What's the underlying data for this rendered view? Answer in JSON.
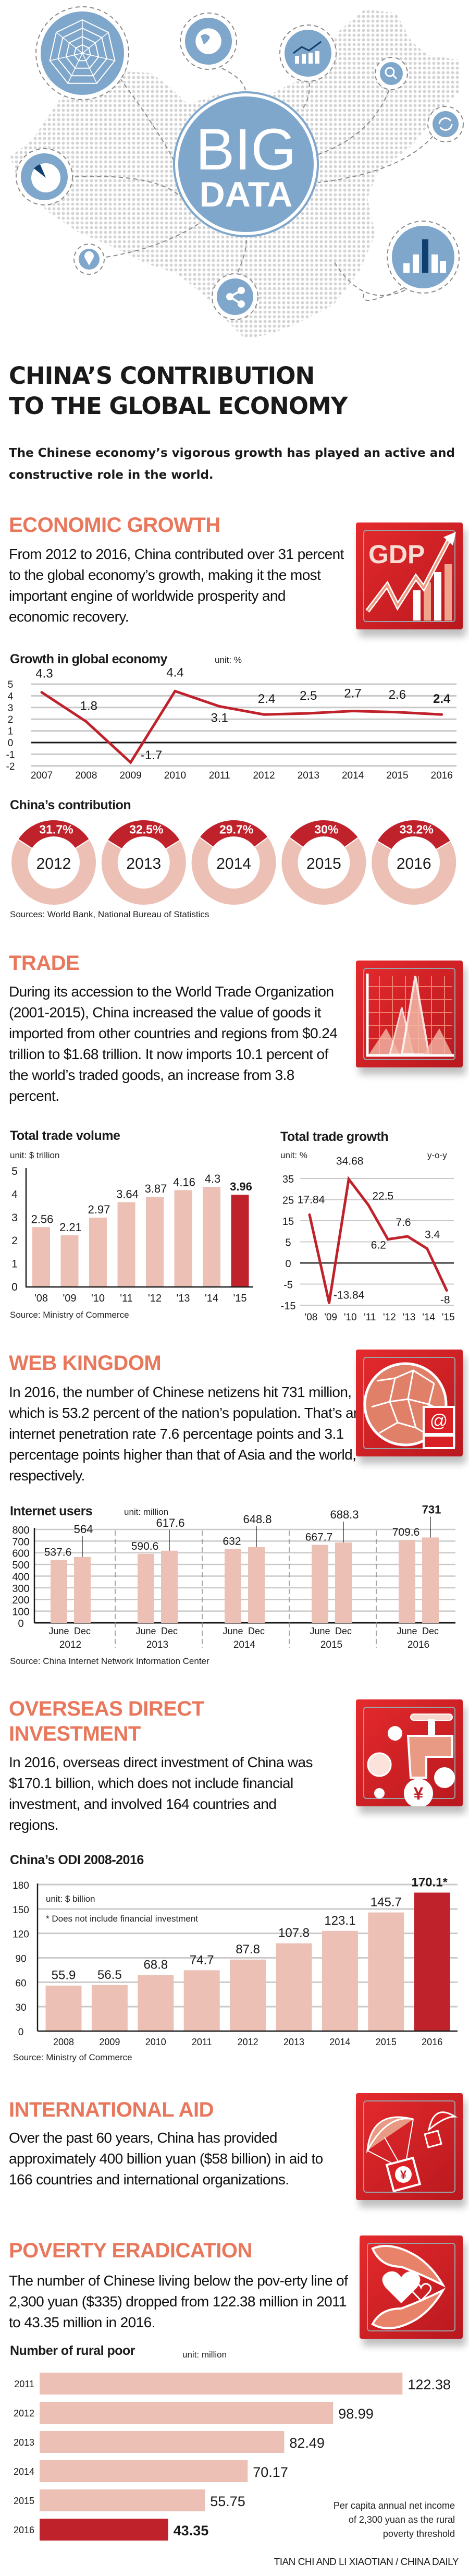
{
  "header": {
    "big": "BIG",
    "data": "DATA",
    "title_line1": "CHINA’S CONTRIBUTION",
    "title_line2": "TO THE GLOBAL ECONOMY",
    "subtitle": "The Chinese economy’s vigorous growth has played an active and constructive role in the world."
  },
  "sections": {
    "economic": {
      "heading": "ECONOMIC GROWTH",
      "body": "From 2012 to 2016, China contributed over 31 percent to the global economy’s growth, making it the most important engine of worldwide prosperity and economic recovery.",
      "icon_text": "GDP",
      "source": "Sources: World Bank, National Bureau of Statistics"
    },
    "trade": {
      "heading": "TRADE",
      "body": "During its accession to the World Trade Organization (2001-2015), China increased the value of goods it imported from other countries and regions from $0.24 trillion to $1.68 trillion. It now imports 10.1 percent of the world’s traded goods, an increase from 3.8 percent.",
      "source": "Source: Ministry of Commerce"
    },
    "web": {
      "heading": "WEB KINGDOM",
      "body": "In 2016, the number of Chinese netizens hit 731 million, which is 53.2 percent of the nation’s population. That’s an internet penetration rate 7.6 percentage points and 3.1 percentage points higher than that of Asia and the world, respectively.",
      "icon_text": "@",
      "source": "Source: China Internet Network Information Center"
    },
    "odi": {
      "heading_line1": "OVERSEAS DIRECT",
      "heading_line2": "INVESTMENT",
      "body": "In 2016, overseas direct investment of China was $170.1 billion, which does not include financial investment, and involved 164 countries and regions.",
      "icon_text": "¥",
      "source": "Source: Ministry of Commerce"
    },
    "aid": {
      "heading": "INTERNATIONAL AID",
      "body": "Over the past 60 years, China has provided approximately 400 billion yuan ($58 billion) in aid to 166 countries and international organizations.",
      "icon_text": "¥"
    },
    "poverty": {
      "heading": "POVERTY ERADICATION",
      "body": "The number of Chinese living below the pov-erty line of 2,300 yuan ($335) dropped from 122.38 million in 2011 to 43.35 million in 2016."
    }
  },
  "icons": {
    "illustration": [
      "radar-chart-icon",
      "globe-icon",
      "trend-chart-icon",
      "search-icon",
      "refresh-icon",
      "pie-chart-icon",
      "location-pin-icon",
      "share-icon",
      "bar-chart-icon"
    ],
    "boxes": [
      "gdp-arrow-icon",
      "trade-peaks-icon",
      "globe-at-icon",
      "faucet-yuan-icon",
      "parachute-yuan-icon",
      "hands-heart-icon"
    ]
  },
  "colors": {
    "accent": "#e8775c",
    "red": "#c0222c",
    "pink": "#ecc0b4",
    "blue": "#7fa6cb",
    "navy": "#0f3f6e"
  },
  "footer": "TIAN CHI AND LI XIAOTIAN / CHINA DAILY",
  "chart_data": [
    {
      "type": "line",
      "title": "Growth in global economy",
      "unit": "unit: %",
      "x": [
        "2007",
        "2008",
        "2009",
        "2010",
        "2011",
        "2012",
        "2013",
        "2014",
        "2015",
        "2016"
      ],
      "values": [
        4.3,
        1.8,
        -1.7,
        4.4,
        3.1,
        2.4,
        2.5,
        2.7,
        2.6,
        2.4
      ],
      "labels": [
        "4.3",
        "1.8",
        "-1.7",
        "4.4",
        "3.1",
        "2.4",
        "2.5",
        "2.7",
        "2.6",
        "2.4"
      ],
      "yticks": [
        "5",
        "4",
        "3",
        "2",
        "1",
        "0",
        "-1",
        "-2"
      ],
      "ylim": [
        -2,
        5
      ],
      "grid": true
    },
    {
      "type": "pie",
      "title": "China’s contribution",
      "categories": [
        "2012",
        "2013",
        "2014",
        "2015",
        "2016"
      ],
      "values": [
        31.7,
        32.5,
        29.7,
        30,
        33.2
      ],
      "labels": [
        "31.7%",
        "32.5%",
        "29.7%",
        "30%",
        "33.2%"
      ]
    },
    {
      "type": "bar",
      "title": "Total trade volume",
      "unit": "unit: $ trillion",
      "categories": [
        "'08",
        "'09",
        "'10",
        "'11",
        "'12",
        "'13",
        "'14",
        "'15"
      ],
      "values": [
        2.56,
        2.21,
        2.97,
        3.64,
        3.87,
        4.16,
        4.3,
        3.96
      ],
      "labels": [
        "2.56",
        "2.21",
        "2.97",
        "3.64",
        "3.87",
        "4.16",
        "4.3",
        "3.96"
      ],
      "yticks": [
        "5",
        "4",
        "3",
        "2",
        "1",
        "0"
      ],
      "ylim": [
        0,
        5
      ]
    },
    {
      "type": "line",
      "title": "Total trade growth",
      "unit": "unit: %",
      "note": "y-o-y",
      "categories": [
        "'08",
        "'09",
        "'10",
        "'11",
        "'12",
        "'13",
        "'14",
        "'15"
      ],
      "values": [
        17.84,
        -13.84,
        34.68,
        22.5,
        6.2,
        7.6,
        3.4,
        -8
      ],
      "labels": [
        "17.84",
        "-13.84",
        "34.68",
        "22.5",
        "6.2",
        "7.6",
        "3.4",
        "-8"
      ],
      "yticks": [
        "35",
        "25",
        "15",
        "5",
        "0",
        "-5",
        "-15"
      ],
      "ylim": [
        -15,
        35
      ],
      "grid": true
    },
    {
      "type": "bar",
      "title": "Internet users",
      "unit": "unit: million",
      "categories": [
        "2012",
        "2013",
        "2014",
        "2015",
        "2016"
      ],
      "subcategories": [
        "June",
        "Dec"
      ],
      "series": [
        {
          "name": "June",
          "values": [
            537.6,
            590.6,
            632,
            667.7,
            709.6
          ],
          "labels": [
            "537.6",
            "590.6",
            "632",
            "667.7",
            "709.6"
          ]
        },
        {
          "name": "Dec",
          "values": [
            564,
            617.6,
            648.8,
            688.3,
            731
          ],
          "labels": [
            "564",
            "617.6",
            "648.8",
            "688.3",
            "731"
          ]
        }
      ],
      "yticks": [
        "800",
        "700",
        "600",
        "500",
        "400",
        "300",
        "200",
        "100",
        "0"
      ],
      "ylim": [
        0,
        800
      ],
      "grid": true
    },
    {
      "type": "bar",
      "title": "China’s ODI 2008-2016",
      "unit": "unit: $ billion",
      "footnote": "* Does not include financial investment",
      "categories": [
        "2008",
        "2009",
        "2010",
        "2011",
        "2012",
        "2013",
        "2014",
        "2015",
        "2016"
      ],
      "values": [
        55.9,
        56.5,
        68.8,
        74.7,
        87.8,
        107.8,
        123.1,
        145.7,
        170.1
      ],
      "labels": [
        "55.9",
        "56.5",
        "68.8",
        "74.7",
        "87.8",
        "107.8",
        "123.1",
        "145.7",
        "170.1*"
      ],
      "yticks": [
        "180",
        "150",
        "120",
        "90",
        "60",
        "30",
        "0"
      ],
      "ylim": [
        0,
        180
      ],
      "grid": true
    },
    {
      "type": "bar",
      "orientation": "horizontal",
      "title": "Number of rural poor",
      "unit": "unit: million",
      "categories": [
        "2011",
        "2012",
        "2013",
        "2014",
        "2015",
        "2016"
      ],
      "values": [
        122.38,
        98.99,
        82.49,
        70.17,
        55.75,
        43.35
      ],
      "labels": [
        "122.38",
        "98.99",
        "82.49",
        "70.17",
        "55.75",
        "43.35"
      ],
      "note": "Per capita annual net income of 2,300 yuan as the rural poverty threshold"
    }
  ]
}
